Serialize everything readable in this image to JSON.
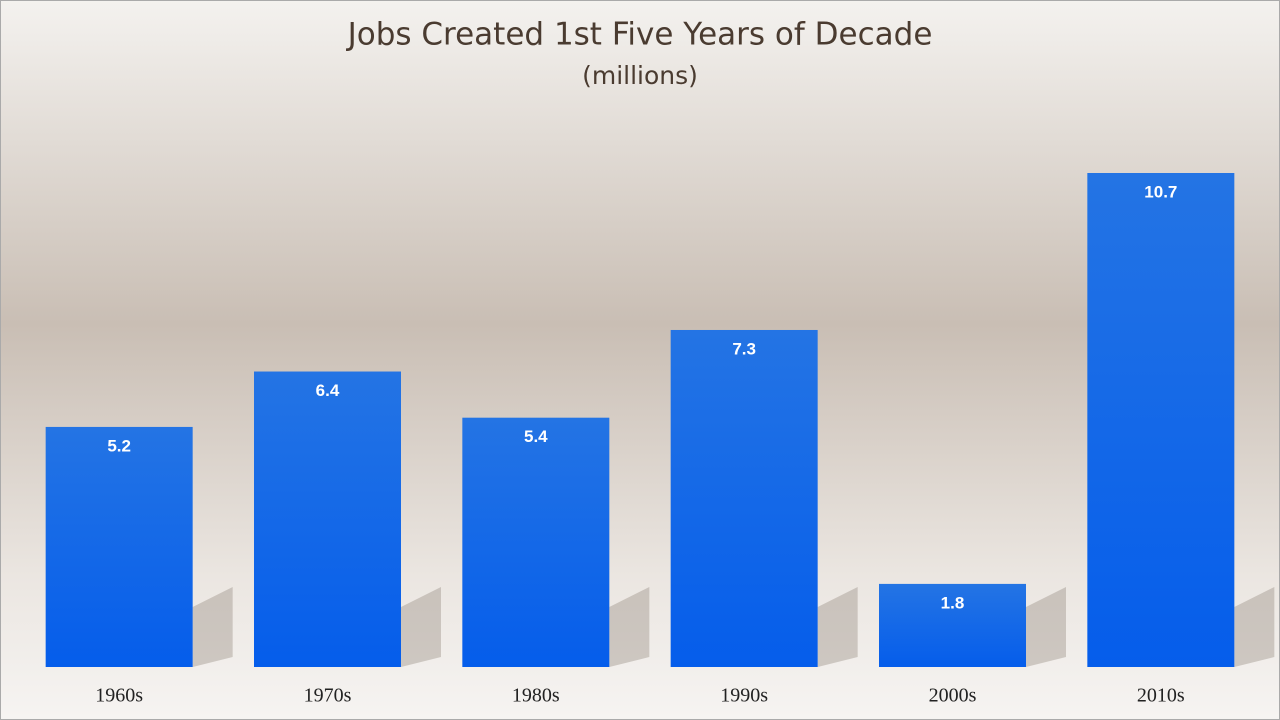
{
  "chart_data": {
    "type": "bar",
    "title": "Jobs Created 1st Five Years of Decade",
    "subtitle": "(millions)",
    "categories": [
      "1960s",
      "1970s",
      "1980s",
      "1990s",
      "2000s",
      "2010s"
    ],
    "values": [
      5.2,
      6.4,
      5.4,
      7.3,
      1.8,
      10.7
    ],
    "color": "#1566e6"
  }
}
